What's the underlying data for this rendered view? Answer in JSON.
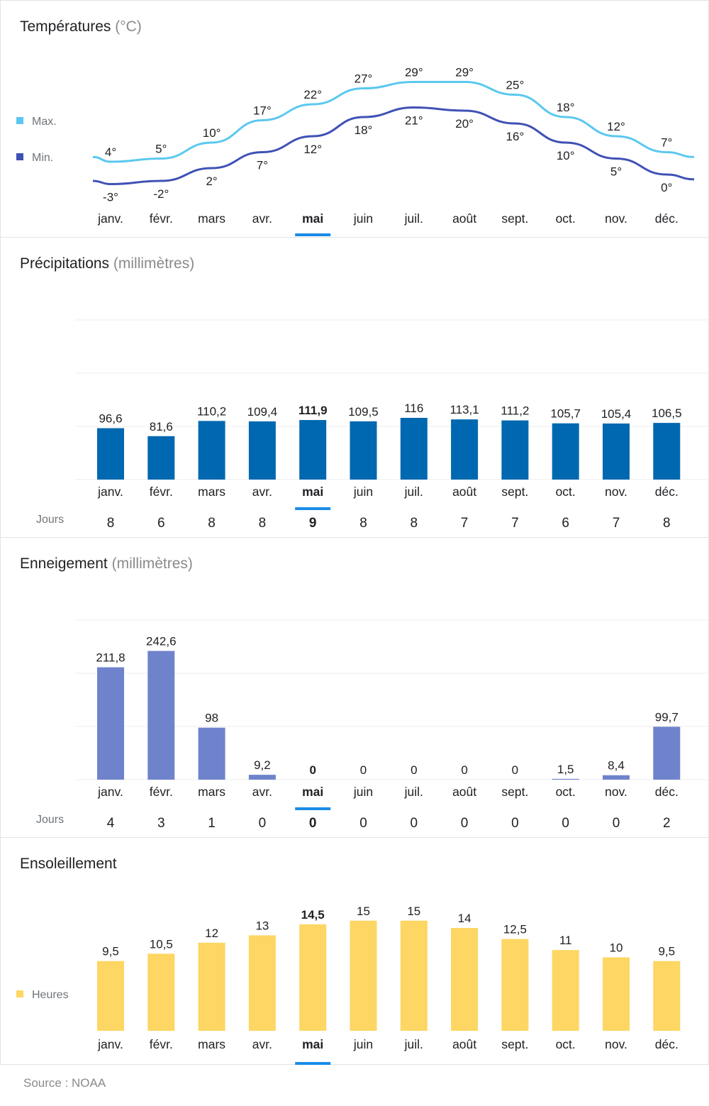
{
  "months": [
    "janv.",
    "févr.",
    "mars",
    "avr.",
    "mai",
    "juin",
    "juil.",
    "août",
    "sept.",
    "oct.",
    "nov.",
    "déc."
  ],
  "selected_index": 4,
  "colors": {
    "max": "#5bc8f0",
    "min": "#3f51b5",
    "precip": "#0068b0",
    "snow": "#6f83cc",
    "sun": "#fdd663",
    "selected_bar": "#1a8ce8",
    "grid": "#ececec"
  },
  "temperatures": {
    "title": "Températures",
    "unit": "(°C)",
    "legend": {
      "max": "Max.",
      "min": "Min."
    }
  },
  "precipitation": {
    "title": "Précipitations",
    "unit": "(millimètres)",
    "days_label": "Jours",
    "days": [
      "8",
      "6",
      "8",
      "8",
      "9",
      "8",
      "8",
      "7",
      "7",
      "6",
      "7",
      "8"
    ]
  },
  "snow": {
    "title": "Enneigement",
    "unit": "(millimètres)",
    "days_label": "Jours",
    "days": [
      "4",
      "3",
      "1",
      "0",
      "0",
      "0",
      "0",
      "0",
      "0",
      "0",
      "0",
      "2"
    ]
  },
  "sunshine": {
    "title": "Ensoleillement",
    "legend": "Heures"
  },
  "source": "Source : NOAA",
  "chart_data": [
    {
      "type": "line",
      "title": "Températures",
      "ylabel": "(°C)",
      "categories": [
        "janv.",
        "févr.",
        "mars",
        "avr.",
        "mai",
        "juin",
        "juil.",
        "août",
        "sept.",
        "oct.",
        "nov.",
        "déc."
      ],
      "series": [
        {
          "name": "Max.",
          "values": [
            4,
            5,
            10,
            17,
            22,
            27,
            29,
            29,
            25,
            18,
            12,
            7
          ],
          "labels": [
            "4°",
            "5°",
            "10°",
            "17°",
            "22°",
            "27°",
            "29°",
            "29°",
            "25°",
            "18°",
            "12°",
            "7°"
          ]
        },
        {
          "name": "Min.",
          "values": [
            -3,
            -2,
            2,
            7,
            12,
            18,
            21,
            20,
            16,
            10,
            5,
            0
          ],
          "labels": [
            "-3°",
            "-2°",
            "2°",
            "7°",
            "12°",
            "18°",
            "21°",
            "20°",
            "16°",
            "10°",
            "5°",
            "0°"
          ]
        }
      ],
      "legend": "left"
    },
    {
      "type": "bar",
      "title": "Précipitations",
      "ylabel": "(millimètres)",
      "categories": [
        "janv.",
        "févr.",
        "mars",
        "avr.",
        "mai",
        "juin",
        "juil.",
        "août",
        "sept.",
        "oct.",
        "nov.",
        "déc."
      ],
      "values": [
        96.6,
        81.6,
        110.2,
        109.4,
        111.9,
        109.5,
        116,
        113.1,
        111.2,
        105.7,
        105.4,
        106.5
      ],
      "labels": [
        "96,6",
        "81,6",
        "110,2",
        "109,4",
        "111,9",
        "109,5",
        "116",
        "113,1",
        "111,2",
        "105,7",
        "105,4",
        "106,5"
      ],
      "ylim": [
        0,
        300
      ],
      "grid": true
    },
    {
      "type": "bar",
      "title": "Enneigement",
      "ylabel": "(millimètres)",
      "categories": [
        "janv.",
        "févr.",
        "mars",
        "avr.",
        "mai",
        "juin",
        "juil.",
        "août",
        "sept.",
        "oct.",
        "nov.",
        "déc."
      ],
      "values": [
        211.8,
        242.6,
        98,
        9.2,
        0,
        0,
        0,
        0,
        0,
        1.5,
        8.4,
        99.7
      ],
      "labels": [
        "211,8",
        "242,6",
        "98",
        "9,2",
        "0",
        "0",
        "0",
        "0",
        "0",
        "1,5",
        "8,4",
        "99,7"
      ],
      "ylim": [
        0,
        300
      ],
      "grid": true
    },
    {
      "type": "bar",
      "title": "Ensoleillement",
      "categories": [
        "janv.",
        "févr.",
        "mars",
        "avr.",
        "mai",
        "juin",
        "juil.",
        "août",
        "sept.",
        "oct.",
        "nov.",
        "déc."
      ],
      "series": [
        {
          "name": "Heures",
          "values": [
            9.5,
            10.5,
            12,
            13,
            14.5,
            15,
            15,
            14,
            12.5,
            11,
            10,
            9.5
          ],
          "labels": [
            "9,5",
            "10,5",
            "12",
            "13",
            "14,5",
            "15",
            "15",
            "14",
            "12,5",
            "11",
            "10",
            "9,5"
          ]
        }
      ],
      "ylim": [
        0,
        15
      ],
      "legend": "left"
    }
  ]
}
